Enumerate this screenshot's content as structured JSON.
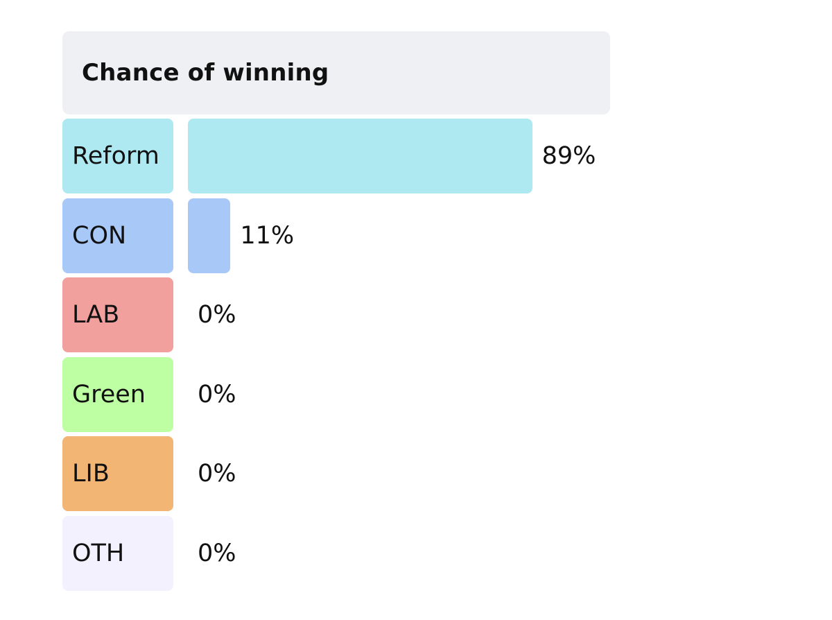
{
  "chart_data": {
    "type": "bar",
    "orientation": "horizontal",
    "title": "Chance of winning",
    "categories": [
      "Reform",
      "CON",
      "LAB",
      "Green",
      "LIB",
      "OTH"
    ],
    "values": [
      89,
      11,
      0,
      0,
      0,
      0
    ],
    "value_labels": [
      "89%",
      "11%",
      "0%",
      "0%",
      "0%",
      "0%"
    ],
    "xlim": [
      0,
      100
    ],
    "colors": [
      "#aee9f2",
      "#a8c9f8",
      "#f2a09d",
      "#bfffa3",
      "#f3b573",
      "#f4f1ff"
    ],
    "grid": false,
    "legend": "none"
  }
}
